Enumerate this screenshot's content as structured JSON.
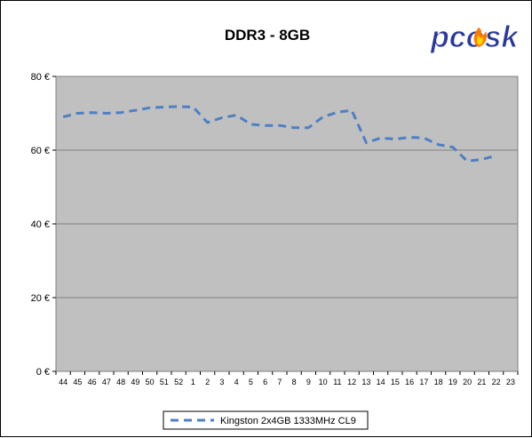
{
  "colors": {
    "plot_background": "#c0c0c0",
    "series_line": "#4f7fc4",
    "gridline": "#808080",
    "logo_fill": "#2b3a9a",
    "flame_outer": "#ff7a00",
    "flame_inner": "#ffd400"
  },
  "logo": {
    "text": "pcosk"
  },
  "chart_data": {
    "type": "line",
    "title": "DDR3 - 8GB",
    "xlabel": "",
    "ylabel": "",
    "categories": [
      "44",
      "45",
      "46",
      "47",
      "48",
      "49",
      "50",
      "51",
      "52",
      "1",
      "2",
      "3",
      "4",
      "5",
      "6",
      "7",
      "8",
      "9",
      "10",
      "11",
      "12",
      "13",
      "14",
      "15",
      "16",
      "17",
      "18",
      "19",
      "20",
      "21",
      "22",
      "23"
    ],
    "ylim": [
      0,
      80
    ],
    "y_ticks": [
      {
        "value": 0,
        "label": "0 €"
      },
      {
        "value": 20,
        "label": "20 €"
      },
      {
        "value": 40,
        "label": "40 €"
      },
      {
        "value": 60,
        "label": "60 €"
      },
      {
        "value": 80,
        "label": "80 €"
      }
    ],
    "grid": true,
    "legend_position": "bottom",
    "series": [
      {
        "name": "Kingston 2x4GB 1333MHz CL9",
        "style": "dashed",
        "values": [
          69,
          70,
          70.2,
          70,
          70.2,
          70.8,
          71.5,
          71.7,
          71.8,
          71.7,
          67.5,
          68.8,
          69.5,
          67,
          66.7,
          66.7,
          66.1,
          66.1,
          69,
          70.3,
          70.8,
          62,
          63.3,
          63,
          63.5,
          63.3,
          61.5,
          60.8,
          57,
          57.5,
          58.5,
          null
        ]
      }
    ]
  }
}
